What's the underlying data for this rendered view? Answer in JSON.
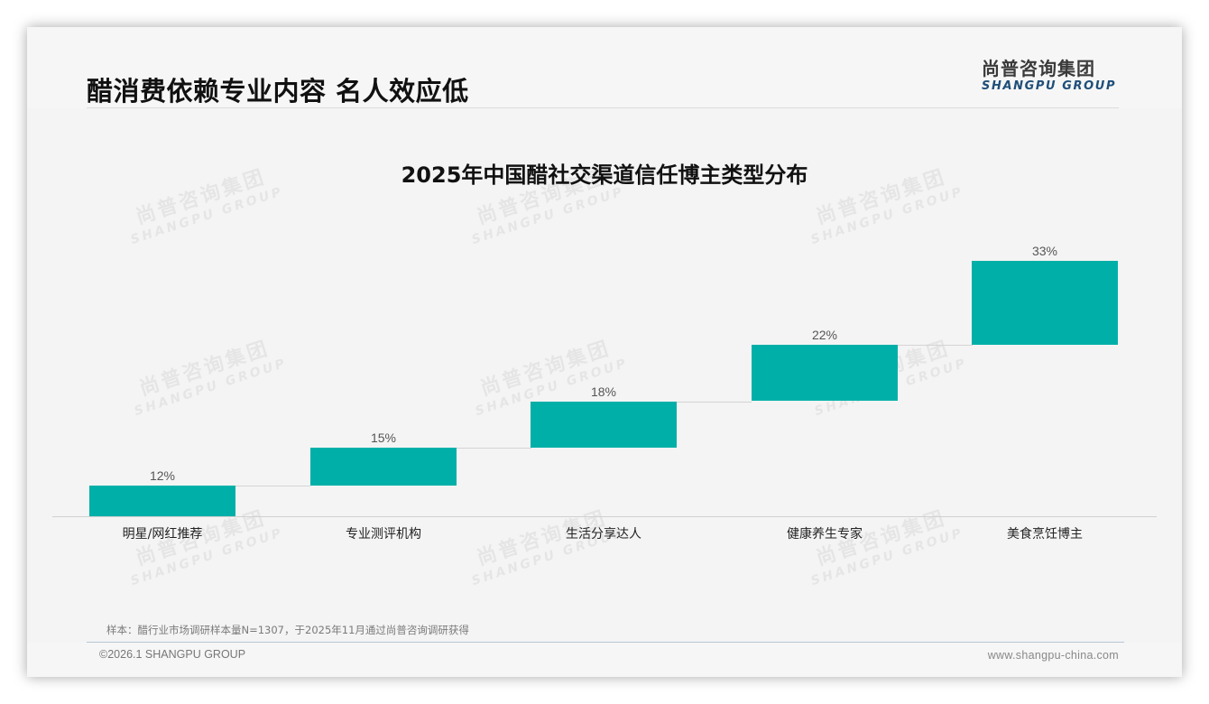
{
  "page": {
    "title": "醋消费依赖专业内容 名人效应低",
    "logo_cn": "尚普咨询集团",
    "logo_en": "SHANGPU GROUP",
    "watermark_cn": "尚普咨询集团",
    "watermark_en": "SHANGPU GROUP",
    "note": "样本：醋行业市场调研样本量N=1307，于2025年11月通过尚普咨询调研获得",
    "copyright": "©2026.1 SHANGPU GROUP",
    "website": "www.shangpu-china.com"
  },
  "colors": {
    "bar": "#00b0a8",
    "logo_en": "#1f4e79"
  },
  "chart_data": {
    "type": "bar",
    "subtype": "waterfall",
    "title": "2025年中国醋社交渠道信任博主类型分布",
    "categories": [
      "明星/网红推荐",
      "专业测评机构",
      "生活分享达人",
      "健康养生专家",
      "美食烹饪博主"
    ],
    "values": [
      12,
      15,
      18,
      22,
      33
    ],
    "labels": [
      "12%",
      "15%",
      "18%",
      "22%",
      "33%"
    ],
    "unit": "%",
    "xlabel": "",
    "ylabel": "",
    "ylim": [
      0,
      100
    ],
    "grid": false,
    "legend": null
  }
}
